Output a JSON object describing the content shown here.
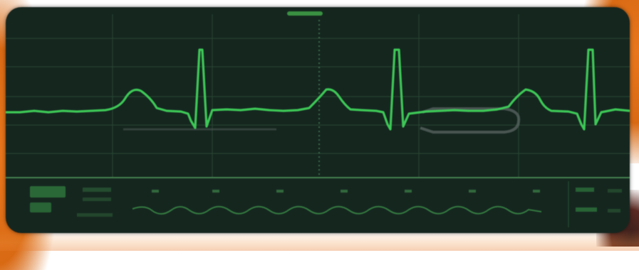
{
  "screen": {
    "description_hidden": "",
    "colors": {
      "background": "#15261f",
      "grid": "#2b4a36",
      "trace": "#3fd05a",
      "secondary_trace": "#3a8a46",
      "bezel_accent": "#e8761c"
    },
    "icons": {
      "top_indicator": "status-bar-icon"
    }
  }
}
